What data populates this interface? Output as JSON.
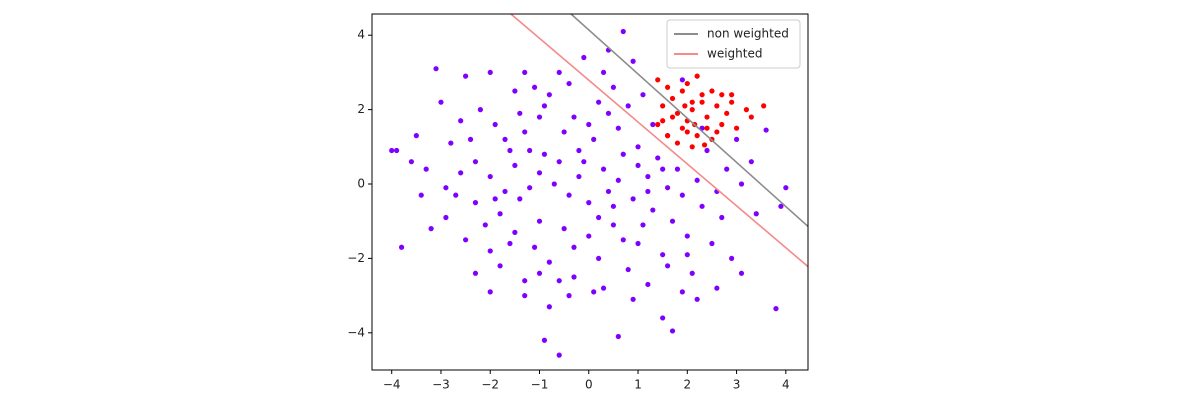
{
  "chart_data": {
    "type": "scatter",
    "xlim": [
      -4.4,
      4.45
    ],
    "ylim": [
      -5.0,
      4.57
    ],
    "xticks": [
      {
        "value": -4,
        "label": "−4"
      },
      {
        "value": -3,
        "label": "−3"
      },
      {
        "value": -2,
        "label": "−2"
      },
      {
        "value": -1,
        "label": "−1"
      },
      0,
      1,
      2,
      3,
      4
    ],
    "yticks": [
      {
        "value": -4,
        "label": "−4"
      },
      {
        "value": -2,
        "label": "−2"
      },
      0,
      2,
      4
    ],
    "legend": "upper right",
    "series": [
      {
        "color": "#7f00ff",
        "x": [
          -3.9,
          -3.1,
          0.7,
          -0.6,
          -0.9,
          3.8,
          -3.8,
          4.0,
          3.6,
          3.9,
          -2.5,
          -2,
          -1.3,
          -0.8,
          0.3,
          0.5,
          -1.5,
          -2.2,
          -1.0,
          0.2,
          1.1,
          1.3,
          -3.5,
          -2.8,
          -2.3,
          -1.7,
          -1.2,
          -0.5,
          0.1,
          0.6,
          1.0,
          1.4,
          1.8,
          2.2,
          2.6,
          -3.3,
          -2.9,
          -2.6,
          -2.0,
          -1.5,
          -1.0,
          -0.6,
          -0.2,
          0.3,
          0.7,
          1.2,
          1.6,
          -0.4,
          0.0,
          0.4,
          0.9,
          1.3,
          1.7,
          -1.4,
          -1.8,
          -2.3,
          -2.9,
          -3.2,
          -2.5,
          -2.0,
          -1.5,
          -1.0,
          -0.5,
          0.0,
          0.5,
          1.0,
          1.5,
          2.0,
          2.5,
          2.9,
          3.1,
          -2.3,
          -1.8,
          -1.3,
          -0.8,
          -0.3,
          0.2,
          0.8,
          1.2,
          1.6,
          -2.0,
          -1.3,
          -0.4,
          0.3,
          0.9,
          -0.8,
          1.5,
          2.2,
          0.6,
          1.7,
          -3.0,
          -2.6,
          -1.9,
          -1.4,
          -0.9,
          -0.3,
          0.4,
          0.8,
          1.6,
          2.4,
          2.8,
          3.1,
          3.4,
          2.7,
          2.3,
          1.9,
          -0.7,
          -1.2,
          -1.7,
          -2.1,
          -0.2,
          0.6,
          1.0,
          -0.9,
          -1.6,
          -2.4,
          0.2,
          -0.3,
          0.7,
          1.1,
          -0.6,
          -1.1,
          -1.6,
          2.1,
          2.6,
          1.9,
          -0.1,
          0.9,
          -0.6,
          0.4,
          -1.1,
          1.9,
          2.3,
          3.0,
          3.3,
          -3.6,
          -4.0,
          -3.4,
          -0.1,
          0.5,
          -1.3,
          -0.4,
          1.2,
          1.5,
          -1.9,
          -2.7,
          0.0,
          0.1,
          -1.0,
          2.0
        ],
        "y": [
          0.9,
          3.1,
          4.1,
          -4.6,
          -4.2,
          -3.35,
          -1.7,
          -0.1,
          1.45,
          -0.6,
          2.9,
          3.0,
          3.0,
          2.4,
          3.0,
          2.6,
          2.5,
          2.0,
          1.8,
          2.2,
          2.4,
          1.6,
          1.3,
          1.1,
          0.6,
          1.2,
          0.9,
          1.4,
          1.2,
          1.5,
          1.0,
          0.7,
          0.4,
          0.1,
          -0.2,
          0.4,
          -0.1,
          0.3,
          0.2,
          0.5,
          0.3,
          0.6,
          0.2,
          0.4,
          0.8,
          0.2,
          -0.1,
          -0.3,
          -0.5,
          -0.2,
          -0.4,
          -0.7,
          -1.0,
          -0.4,
          -0.8,
          -0.5,
          -0.9,
          -1.2,
          -1.5,
          -1.8,
          -1.3,
          -1.0,
          -1.2,
          -1.4,
          -1.1,
          -1.6,
          -1.9,
          -1.4,
          -1.6,
          -2.0,
          -2.4,
          -2.4,
          -2.2,
          -2.6,
          -2.1,
          -2.5,
          -2.0,
          -2.3,
          -2.7,
          -2.2,
          -2.9,
          -3.0,
          -3.0,
          -2.8,
          -3.1,
          -3.3,
          -3.6,
          -3.1,
          -4.1,
          -3.95,
          2.2,
          1.7,
          1.6,
          1.9,
          2.1,
          1.8,
          1.9,
          2.1,
          1.3,
          0.9,
          0.4,
          0.0,
          -0.8,
          -0.9,
          -0.6,
          -0.3,
          0.0,
          -0.1,
          -0.2,
          -1.1,
          0.9,
          0.1,
          0.5,
          0.8,
          0.9,
          1.2,
          -0.9,
          -1.7,
          -1.5,
          -1.1,
          -2.6,
          -1.7,
          -1.6,
          -2.4,
          -2.8,
          -2.9,
          3.4,
          3.3,
          3.0,
          3.6,
          2.6,
          2.8,
          1.5,
          1.2,
          0.6,
          0.6,
          0.9,
          -0.3,
          0.6,
          -0.6,
          1.4,
          2.7,
          -0.2,
          0.4,
          -0.4,
          -0.3,
          1.6,
          -2.9,
          -2.4,
          -1.9
        ]
      },
      {
        "color": "#ff0000",
        "x": [
          1.4,
          1.7,
          2.0,
          2.3,
          2.6,
          2.9,
          3.2,
          3.55,
          1.5,
          1.8,
          2.1,
          2.4,
          2.7,
          3.0,
          1.6,
          1.9,
          2.2,
          2.5,
          2.1,
          1.8,
          1.4,
          2.0,
          2.3,
          2.5,
          2.7,
          1.9,
          2.1,
          1.7,
          2.4,
          2.8,
          2.2,
          1.5,
          2.6,
          2.0,
          2.35,
          1.6,
          2.9,
          3.3,
          1.95,
          2.15
        ],
        "y": [
          2.8,
          2.3,
          2.7,
          2.4,
          2.1,
          2.2,
          2.0,
          2.1,
          1.7,
          1.9,
          2.0,
          1.8,
          1.6,
          1.5,
          1.3,
          1.5,
          1.3,
          1.2,
          1.0,
          1.1,
          1.6,
          1.7,
          2.2,
          2.5,
          2.4,
          2.5,
          2.2,
          1.8,
          1.5,
          1.9,
          2.9,
          2.1,
          1.4,
          1.4,
          1.05,
          2.6,
          2.4,
          1.8,
          2.1,
          1.6
        ]
      }
    ],
    "lines": [
      {
        "name": "non weighted",
        "color": "#8c8c8c",
        "x": [
          -0.36,
          4.45
        ],
        "y": [
          4.57,
          -1.14
        ]
      },
      {
        "name": "weighted",
        "color": "#f58a8a",
        "x": [
          -1.58,
          4.45
        ],
        "y": [
          4.57,
          -2.22
        ]
      }
    ]
  }
}
